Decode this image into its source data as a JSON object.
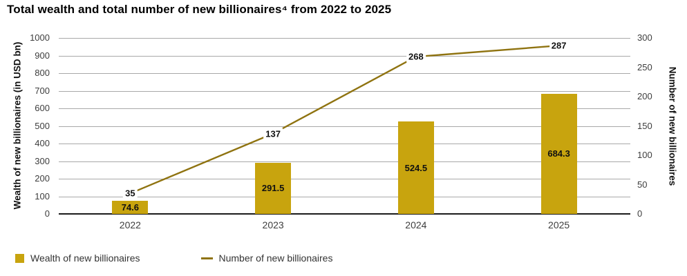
{
  "title": "Total wealth and total number of new billionaires⁴ from 2022 to 2025",
  "colors": {
    "bar": "#C8A40E",
    "line": "#8F7310",
    "grid": "#A8A8A8",
    "axis": "#1A1A1A",
    "tick_text": "#3D3D3D",
    "value_text": "#111111"
  },
  "chart_data": {
    "type": "bar",
    "subtype": "bar-and-line-dual-axis",
    "categories": [
      "2022",
      "2023",
      "2024",
      "2025"
    ],
    "series": [
      {
        "name": "Wealth of new billionaires",
        "type": "bar",
        "axis": "left",
        "values": [
          74.6,
          291.5,
          524.5,
          684.3
        ],
        "value_labels": [
          "74.6",
          "291.5",
          "524.5",
          "684.3"
        ]
      },
      {
        "name": "Number of new billionaires",
        "type": "line",
        "axis": "right",
        "values": [
          35,
          137,
          268,
          287
        ],
        "value_labels": [
          "35",
          "137",
          "268",
          "287"
        ]
      }
    ],
    "axis_left": {
      "label": "Wealth of new billionaires (in USD bn)",
      "min": 0,
      "max": 1000,
      "ticks": [
        0,
        100,
        200,
        300,
        400,
        500,
        600,
        700,
        800,
        900,
        1000
      ]
    },
    "axis_right": {
      "label": "Number of new billionaires",
      "min": 0,
      "max": 300,
      "ticks": [
        0,
        50,
        100,
        150,
        200,
        250,
        300
      ]
    },
    "grid": true,
    "legend_position": "bottom-left"
  },
  "legend": {
    "items": [
      {
        "label": "Wealth of new billionaires",
        "swatch": "square"
      },
      {
        "label": "Number of new billionaires",
        "swatch": "line"
      }
    ]
  }
}
